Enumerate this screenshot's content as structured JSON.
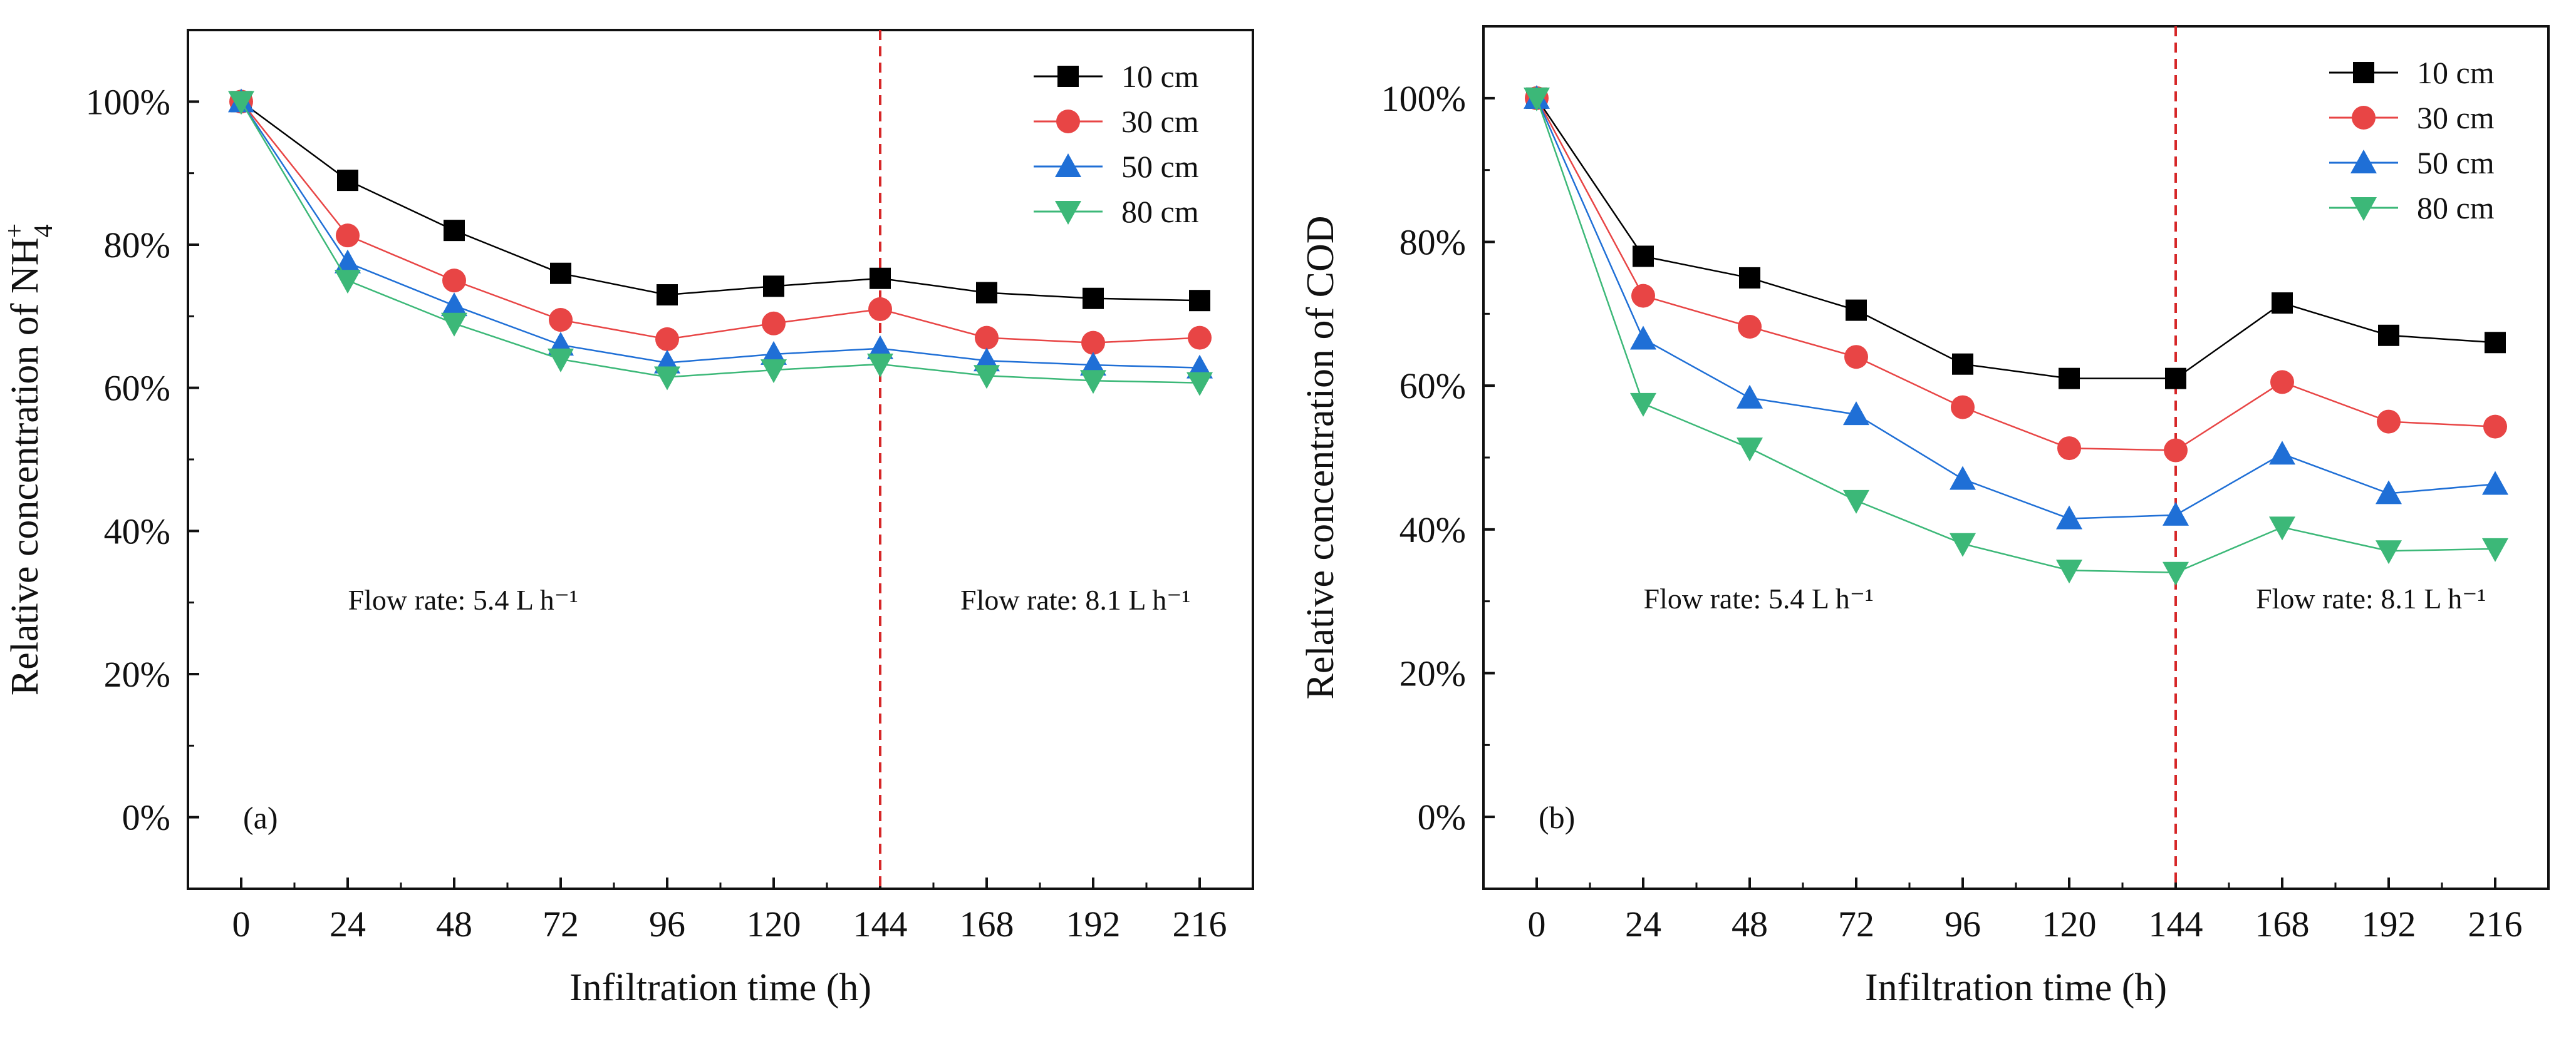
{
  "colors": {
    "10 cm": "#000000",
    "30 cm": "#e84545",
    "50 cm": "#1f6fd6",
    "80 cm": "#3cb878",
    "divider": "#d62728",
    "axis": "#111111"
  },
  "chart_data": [
    {
      "type": "line",
      "panel_label": "(a)",
      "title": "",
      "xlabel": "Infiltration time (h)",
      "ylabel_prefix": "Relative concentration of ",
      "ylabel_species": "NH",
      "ylabel_sub": "4",
      "ylabel_sup": "+",
      "x": [
        0,
        24,
        48,
        72,
        96,
        120,
        144,
        168,
        192,
        216
      ],
      "xticks": [
        0,
        24,
        48,
        72,
        96,
        120,
        144,
        168,
        192,
        216
      ],
      "xlim": [
        -12,
        228
      ],
      "ylim": [
        -10,
        110
      ],
      "yticks": [
        0,
        20,
        40,
        60,
        80,
        100
      ],
      "ytick_labels": [
        "0%",
        "20%",
        "40%",
        "60%",
        "80%",
        "100%"
      ],
      "divider_x": 144,
      "annotations": [
        "Flow rate: 5.4 L h⁻¹",
        "Flow rate: 8.1 L h⁻¹"
      ],
      "legend_position": "top-right",
      "series": [
        {
          "name": "10 cm",
          "marker": "square",
          "values": [
            100,
            89,
            82,
            76,
            73,
            74.2,
            75.3,
            73.3,
            72.5,
            72.2
          ]
        },
        {
          "name": "30 cm",
          "marker": "circle",
          "values": [
            100,
            81.3,
            75,
            69.5,
            66.8,
            69,
            71,
            67,
            66.3,
            67
          ]
        },
        {
          "name": "50 cm",
          "marker": "triangle-up",
          "values": [
            100,
            77.5,
            71.5,
            66,
            63.5,
            64.7,
            65.5,
            63.8,
            63.2,
            62.8
          ]
        },
        {
          "name": "80 cm",
          "marker": "triangle-down",
          "values": [
            100,
            75,
            69,
            64,
            61.5,
            62.5,
            63.3,
            61.7,
            61,
            60.7
          ]
        }
      ]
    },
    {
      "type": "line",
      "panel_label": "(b)",
      "title": "",
      "xlabel": "Infiltration time (h)",
      "ylabel_prefix": "Relative concentration of COD",
      "ylabel_species": "",
      "ylabel_sub": "",
      "ylabel_sup": "",
      "x": [
        0,
        24,
        48,
        72,
        96,
        120,
        144,
        168,
        192,
        216
      ],
      "xticks": [
        0,
        24,
        48,
        72,
        96,
        120,
        144,
        168,
        192,
        216
      ],
      "xlim": [
        -12,
        228
      ],
      "ylim": [
        -10,
        110
      ],
      "yticks": [
        0,
        20,
        40,
        60,
        80,
        100
      ],
      "ytick_labels": [
        "0%",
        "20%",
        "40%",
        "60%",
        "80%",
        "100%"
      ],
      "divider_x": 144,
      "annotations": [
        "Flow rate: 5.4 L h⁻¹",
        "Flow rate: 8.1 L h⁻¹"
      ],
      "legend_position": "top-right",
      "series": [
        {
          "name": "10 cm",
          "marker": "square",
          "values": [
            100,
            78,
            75,
            70.5,
            63,
            61,
            61,
            71.5,
            67,
            66
          ]
        },
        {
          "name": "30 cm",
          "marker": "circle",
          "values": [
            100,
            72.5,
            68.2,
            64,
            57,
            51.3,
            51,
            60.5,
            55,
            54.3
          ]
        },
        {
          "name": "50 cm",
          "marker": "triangle-up",
          "values": [
            100,
            66.5,
            58.3,
            56,
            47,
            41.5,
            42,
            50.5,
            45,
            46.3
          ]
        },
        {
          "name": "80 cm",
          "marker": "triangle-down",
          "values": [
            100,
            57.5,
            51.3,
            44,
            38,
            34.3,
            34,
            40.3,
            37,
            37.3
          ]
        }
      ]
    }
  ]
}
